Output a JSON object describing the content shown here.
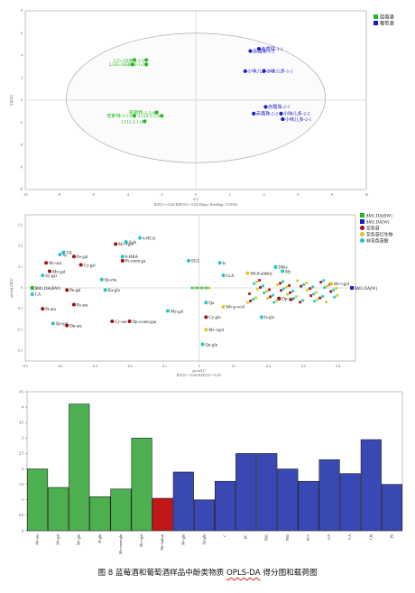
{
  "caption": {
    "prefix": "图 8 蓝莓酒和葡萄酒样品中酚类物质 ",
    "method": "OPLS-DA",
    "suffix": " 得分图和载荷图"
  },
  "score_plot": {
    "legend": [
      {
        "label": "蓝莓酒",
        "color": "#22b822"
      },
      {
        "label": "葡萄酒",
        "color": "#1a1acc"
      }
    ],
    "ylabel": "t[1]O[1]",
    "xlabel": "t[1]",
    "footer": "R2X[1] = 0.344       R2X[O1] = 0.252       Ellipse: Hotelling's T2 (95%)",
    "x_ticks": [
      "-10",
      "-8",
      "-6",
      "-4",
      "-2",
      "0",
      "2",
      "4",
      "6",
      "8",
      "10"
    ],
    "y_ticks": [
      "-8",
      "-6",
      "-4",
      "-2",
      "0",
      "2",
      "4",
      "6",
      "8"
    ],
    "chart_data": {
      "type": "scatter",
      "xlim": [
        -10,
        10
      ],
      "ylim": [
        -8,
        8
      ],
      "series": [
        {
          "name": "蓝莓酒",
          "color": "#22b822",
          "points": [
            {
              "label": "L25-1-1.d",
              "x": -3.6,
              "y": 3.6
            },
            {
              "label": "L25-2-2.d",
              "x": -2.9,
              "y": 3.6
            },
            {
              "label": "L503-1-1.d",
              "x": -3.7,
              "y": 3.2
            },
            {
              "label": "L503-2-1.d",
              "x": -2.9,
              "y": 3.2
            },
            {
              "label": "密斯特-1-2.d",
              "x": -2.3,
              "y": -1.1
            },
            {
              "label": "密斯特-2-2.d",
              "x": -3.6,
              "y": -1.4
            },
            {
              "label": "L513-2-2.d",
              "x": -2.0,
              "y": -1.4
            },
            {
              "label": "L513-2-1.d",
              "x": -3.0,
              "y": -1.9
            }
          ]
        },
        {
          "name": "葡萄酒",
          "color": "#1a1acc",
          "points": [
            {
              "label": "赤霞珠-1-2",
              "x": 3.2,
              "y": 4.4
            },
            {
              "label": "赤霞珠-1-1",
              "x": 3.7,
              "y": 4.6
            },
            {
              "label": "小味儿多-1-2",
              "x": 2.9,
              "y": 2.6
            },
            {
              "label": "小味儿多-1-1",
              "x": 4.0,
              "y": 2.6
            },
            {
              "label": "赤霞珠-2-1",
              "x": 4.1,
              "y": -0.6
            },
            {
              "label": "赤霞珠-2-2",
              "x": 3.4,
              "y": -1.2
            },
            {
              "label": "小味儿多-2-2",
              "x": 5.0,
              "y": -1.2
            },
            {
              "label": "小味儿多-2-1",
              "x": 5.1,
              "y": -1.7
            }
          ]
        }
      ]
    }
  },
  "loading_plot": {
    "legend": [
      {
        "label": "$M1.DA(BW)",
        "color": "#22b822"
      },
      {
        "label": "$M1.DA(W)",
        "color": "#1a1acc"
      },
      {
        "label": "花色苷",
        "color": "#a01010"
      },
      {
        "label": "花色苷衍生物",
        "color": "#d8c820"
      },
      {
        "label": "非花色苷酚",
        "color": "#22c4c4"
      }
    ],
    "ylabel": "p(corr)[1]O[1]",
    "xlabel": "p(corr)[1]",
    "footer": "R2X[1] = 0.344       R2X[O1] = 0.252",
    "x_ticks": [
      "-0.5",
      "-0.4",
      "-0.3",
      "-0.2",
      "-0.1",
      "0",
      "0.1",
      "0.2",
      "0.3",
      "0.4"
    ],
    "y_ticks": [
      "-0.3",
      "-0.2",
      "-0.1",
      "0",
      "0.1",
      "0.2",
      "0.3"
    ],
    "chart_data": {
      "type": "scatter",
      "xlim": [
        -0.5,
        0.45
      ],
      "ylim": [
        -0.35,
        0.35
      ],
      "points": [
        {
          "label": "4-HCA",
          "x": -0.17,
          "y": 0.24,
          "group": "非花色苷酚"
        },
        {
          "label": "SyA",
          "x": -0.21,
          "y": 0.22,
          "group": "非花色苷酚"
        },
        {
          "label": "Mv-vgol",
          "x": -0.24,
          "y": 0.21,
          "group": "花色苷"
        },
        {
          "label": "VA",
          "x": -0.39,
          "y": 0.17,
          "group": "非花色苷酚"
        },
        {
          "label": "Sy",
          "x": -0.4,
          "y": 0.16,
          "group": "非花色苷酚"
        },
        {
          "label": "Pe-gal",
          "x": -0.36,
          "y": 0.15,
          "group": "花色苷"
        },
        {
          "label": "8-HBA",
          "x": -0.22,
          "y": 0.15,
          "group": "非花色苷酚"
        },
        {
          "label": "Mv-ara",
          "x": -0.44,
          "y": 0.12,
          "group": "花色苷"
        },
        {
          "label": "Cy-gal",
          "x": -0.34,
          "y": 0.11,
          "group": "花色苷"
        },
        {
          "label": "Pt-coum-ga",
          "x": -0.22,
          "y": 0.13,
          "group": "花色苷"
        },
        {
          "label": "Mv-gal",
          "x": -0.43,
          "y": 0.08,
          "group": "花色苷"
        },
        {
          "label": "Sy-gal",
          "x": -0.45,
          "y": 0.06,
          "group": "非花色苷酚"
        },
        {
          "label": "EGC",
          "x": -0.03,
          "y": 0.13,
          "group": "非花色苷酚"
        },
        {
          "label": "Is",
          "x": 0.06,
          "y": 0.12,
          "group": "非花色苷酚"
        },
        {
          "label": "DiKe",
          "x": 0.22,
          "y": 0.1,
          "group": "非花色苷酚"
        },
        {
          "label": "My",
          "x": 0.24,
          "y": 0.08,
          "group": "非花色苷酚"
        },
        {
          "label": "Qu-rha",
          "x": -0.28,
          "y": 0.04,
          "group": "非花色苷酚"
        },
        {
          "label": "$M1.DA(BW)",
          "x": -0.48,
          "y": 0.0,
          "group": "$M1.DA(BW)"
        },
        {
          "label": "$M1.DA(W)",
          "x": 0.44,
          "y": 0.0,
          "group": "$M1.DA(W)"
        },
        {
          "label": "Pe-gal",
          "x": -0.38,
          "y": -0.01,
          "group": "花色苷"
        },
        {
          "label": "Ka-glu",
          "x": -0.27,
          "y": -0.01,
          "group": "非花色苷酚"
        },
        {
          "label": "CA",
          "x": -0.48,
          "y": -0.03,
          "group": "非花色苷酚"
        },
        {
          "label": "GcA",
          "x": 0.07,
          "y": 0.06,
          "group": "非花色苷酚"
        },
        {
          "label": "MvA-aldehy",
          "x": 0.14,
          "y": 0.07,
          "group": "花色苷衍生物"
        },
        {
          "label": "Pt-ara",
          "x": -0.45,
          "y": -0.1,
          "group": "花色苷"
        },
        {
          "label": "Pe-ara",
          "x": -0.36,
          "y": -0.08,
          "group": "花色苷"
        },
        {
          "label": "Qu-gal",
          "x": -0.42,
          "y": -0.17,
          "group": "非花色苷酚"
        },
        {
          "label": "Dp-ara",
          "x": -0.38,
          "y": -0.18,
          "group": "花色苷"
        },
        {
          "label": "Cy-ara",
          "x": -0.25,
          "y": -0.16,
          "group": "花色苷"
        },
        {
          "label": "Dp-coum-gaa",
          "x": -0.2,
          "y": -0.16,
          "group": "花色苷"
        },
        {
          "label": "My-gal",
          "x": -0.09,
          "y": -0.11,
          "group": "非花色苷酚"
        },
        {
          "label": "Qu",
          "x": 0.02,
          "y": -0.07,
          "group": "非花色苷酚"
        },
        {
          "label": "Mv-p-vcol",
          "x": 0.07,
          "y": -0.09,
          "group": "花色苷衍生物"
        },
        {
          "label": "Cy-glu",
          "x": 0.02,
          "y": -0.14,
          "group": "花色苷"
        },
        {
          "label": "Mv-vgol",
          "x": 0.02,
          "y": -0.2,
          "group": "花色苷衍生物"
        },
        {
          "label": "Qu-glu",
          "x": 0.01,
          "y": -0.27,
          "group": "非花色苷酚"
        },
        {
          "label": "Mv-vgol",
          "x": 0.38,
          "y": 0.02,
          "group": "花色苷衍生物"
        },
        {
          "label": "Dp-glu",
          "x": 0.23,
          "y": -0.05,
          "group": "花色苷"
        },
        {
          "label": "Is-glu",
          "x": 0.18,
          "y": -0.14,
          "group": "非花色苷酚"
        }
      ]
    }
  },
  "bar_chart": {
    "y_ticks": [
      "0",
      "0.5",
      "1",
      "1.5",
      "2",
      "2.5",
      "3",
      "3.5",
      "4",
      "4.5"
    ],
    "chart_data": {
      "type": "bar",
      "ylim": [
        0,
        4.5
      ],
      "categories": [
        "Mv-ara",
        "Mv-gal",
        "Mv-glu",
        "Pt-glu",
        "Mv-coum-glu",
        "Mv-vgol",
        "Mv-vinlcat",
        "Mv-glu",
        "Qu-glu",
        "C",
        "EC",
        "PB1",
        "PB2",
        "PC1",
        "GA",
        "CA",
        "Cht",
        "Pk"
      ],
      "values": [
        2.0,
        1.4,
        4.1,
        1.1,
        1.35,
        3.0,
        1.05,
        1.9,
        1.0,
        1.6,
        2.5,
        2.5,
        2.0,
        1.6,
        2.3,
        1.85,
        2.95,
        1.5
      ],
      "colors": [
        "#4cb050",
        "#4cb050",
        "#4cb050",
        "#4cb050",
        "#4cb050",
        "#4cb050",
        "#c01818",
        "#3a48b4",
        "#3a48b4",
        "#3a48b4",
        "#3a48b4",
        "#3a48b4",
        "#3a48b4",
        "#3a48b4",
        "#3a48b4",
        "#3a48b4",
        "#3a48b4",
        "#3a48b4"
      ]
    }
  }
}
